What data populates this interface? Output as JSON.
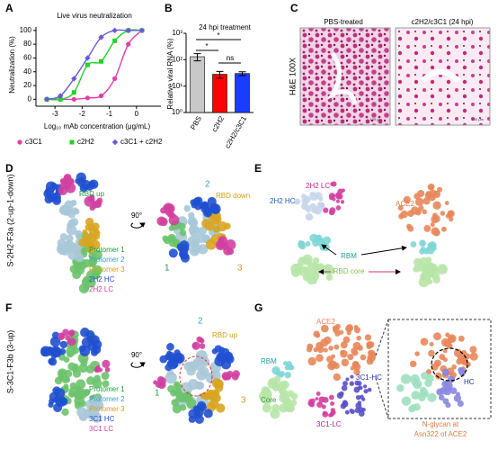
{
  "chart_data": [
    {
      "type": "line",
      "panel": "A",
      "title": "Live virus neutralization",
      "xlabel": "Log₁₀ mAb concentration (μg/mL)",
      "ylabel": "Neutralization (%)",
      "x": [
        -3.3,
        -2.8,
        -2.3,
        -1.8,
        -1.3,
        -0.8,
        -0.3,
        0.2
      ],
      "series": [
        {
          "name": "c3C1",
          "color": "#e83aa8",
          "marker": "circle",
          "values": [
            0,
            0,
            0,
            2,
            5,
            30,
            80,
            100
          ]
        },
        {
          "name": "c2H2",
          "color": "#22d22a",
          "marker": "square",
          "values": [
            0,
            0,
            10,
            50,
            55,
            85,
            100,
            100
          ]
        },
        {
          "name": "c3C1 + c2H2",
          "color": "#6a5ad8",
          "marker": "diamond",
          "values": [
            0,
            5,
            30,
            60,
            90,
            100,
            100,
            100
          ]
        }
      ],
      "xlim": [
        -3.7,
        0.9
      ],
      "xticks": [
        -3,
        -2,
        -1,
        0
      ],
      "ylim": [
        -10,
        105
      ],
      "yticks": [
        0,
        20,
        40,
        60,
        80,
        100
      ]
    },
    {
      "type": "bar",
      "panel": "B",
      "title": "24 hpi treatment",
      "ylabel": "Relative viral RNA (%)",
      "log_scale": true,
      "categories": [
        "PBS",
        "c2H2",
        "c2H2/c3C1"
      ],
      "values": [
        130,
        28,
        30
      ],
      "errors": [
        40,
        8,
        5
      ],
      "colors": [
        "#c8c8c8",
        "#ff0000",
        "#1a3cff"
      ],
      "ylim": [
        1,
        1000
      ],
      "yticks": [
        {
          "value": 1,
          "label": "10⁰"
        },
        {
          "value": 10,
          "label": "10¹"
        },
        {
          "value": 100,
          "label": "10²"
        },
        {
          "value": 1000,
          "label": "10³"
        }
      ],
      "significance": [
        "*",
        "*",
        "ns"
      ]
    }
  ],
  "panel_labels": [
    "A",
    "B",
    "C",
    "D",
    "E",
    "F",
    "G"
  ],
  "panel_c": {
    "titles": [
      "PBS-treated",
      "c2H2/c3C1 (24 hpi)"
    ],
    "side_label": "H&E 100X",
    "scale_bar": "100 μm"
  },
  "panel_d": {
    "title": "S-2H2-F3a (2-up-1-down)",
    "rbd_up": "RBD up",
    "rotation": "90°",
    "rbd_down": "RBD down",
    "numbers": [
      "2",
      "1",
      "3"
    ],
    "legend": [
      "Protomer 1",
      "Protomer 2",
      "Protomer 3",
      "2H2 HC",
      "2H2 LC"
    ]
  },
  "panel_e": {
    "lc": "2H2 LC",
    "hc": "2H2 HC",
    "ace2": "ACE2",
    "rbm": "RBM",
    "core": "RBD core"
  },
  "panel_f": {
    "title": "S-3C1-F3b (3-up)",
    "rotation": "90°",
    "rbd_up": "RBD up",
    "numbers": [
      "2",
      "1",
      "3"
    ],
    "legend": [
      "Protomer 1",
      "Protomer 2",
      "Protomer 3",
      "3C1 HC",
      "3C1 LC"
    ]
  },
  "panel_g": {
    "ace2": "ACE2",
    "rbm": "RBM",
    "core": "Core",
    "hc": "3C1-HC",
    "lc": "3C1-LC",
    "inset_hc": "HC",
    "glycan": [
      "N-glycan at",
      "Asn322 of ACE2"
    ]
  }
}
